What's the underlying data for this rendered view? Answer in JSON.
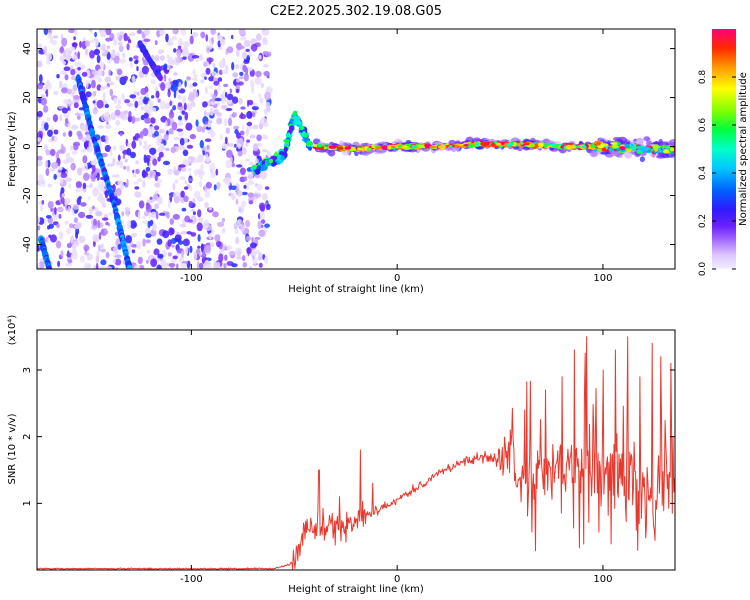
{
  "title": "C2E2.2025.302.19.08.G05",
  "chart_data": [
    {
      "type": "heatmap",
      "xlabel": "Height of straight line (km)",
      "ylabel": "Frequency (Hz)",
      "xlim": [
        -175,
        135
      ],
      "ylim": [
        -50,
        48
      ],
      "xticks": [
        -100,
        0,
        100
      ],
      "yticks": [
        -40,
        -20,
        0,
        20,
        40
      ],
      "colorbar": {
        "label": "Normalized spectral amplitude",
        "range": [
          0,
          1
        ],
        "ticks": [
          0.0,
          0.2,
          0.4,
          0.6,
          0.8
        ]
      },
      "features": [
        {
          "name": "noise_region",
          "x_range": [
            -175,
            -62
          ],
          "y_range": [
            -50,
            48
          ],
          "amplitude": 0.12
        },
        {
          "name": "streak_1",
          "points": [
            [
              -155,
              28
            ],
            [
              -148,
              5
            ],
            [
              -138,
              -22
            ],
            [
              -130,
              -50
            ]
          ],
          "amplitude": 0.3
        },
        {
          "name": "streak_2",
          "points": [
            [
              -125,
              42
            ],
            [
              -115,
              28
            ]
          ],
          "amplitude": 0.22
        },
        {
          "name": "streak_3",
          "points": [
            [
              -173,
              -38
            ],
            [
              -169,
              -50
            ]
          ],
          "amplitude": 0.3
        },
        {
          "name": "transition",
          "points": [
            [
              -70,
              -10
            ],
            [
              -62,
              -6
            ],
            [
              -55,
              -4
            ],
            [
              -50,
              13
            ],
            [
              -46,
              6
            ],
            [
              -42,
              0
            ]
          ],
          "amplitude": 0.45
        },
        {
          "name": "carrier_line",
          "points": [
            [
              -40,
              0
            ],
            [
              -20,
              -1
            ],
            [
              0,
              0
            ],
            [
              20,
              0
            ],
            [
              40,
              1
            ],
            [
              60,
              1
            ],
            [
              80,
              0
            ],
            [
              100,
              0
            ],
            [
              120,
              -1
            ],
            [
              135,
              -1
            ]
          ],
          "amplitude": 0.95
        }
      ]
    },
    {
      "type": "line",
      "xlabel": "Height of straight line (km)",
      "ylabel": "SNR (10 * v/v)",
      "scale_label": "(x10⁴)",
      "xlim": [
        -175,
        135
      ],
      "ylim": [
        0,
        3.6
      ],
      "xticks": [
        -100,
        0,
        100
      ],
      "yticks": [
        1,
        2,
        3
      ],
      "series": [
        {
          "name": "SNR",
          "color": "#e8392e",
          "profile": [
            [
              -175,
              0.02
            ],
            [
              -60,
              0.02
            ],
            [
              -50,
              0.1
            ],
            [
              -45,
              0.6
            ],
            [
              -40,
              0.7
            ],
            [
              -35,
              0.6
            ],
            [
              -30,
              0.65
            ],
            [
              -25,
              0.6
            ],
            [
              -20,
              0.8
            ],
            [
              -10,
              0.9
            ],
            [
              0,
              1.05
            ],
            [
              10,
              1.25
            ],
            [
              20,
              1.45
            ],
            [
              30,
              1.6
            ],
            [
              40,
              1.68
            ],
            [
              50,
              1.7
            ],
            [
              55,
              1.65
            ],
            [
              60,
              1.45
            ],
            [
              70,
              1.5
            ],
            [
              80,
              1.55
            ],
            [
              90,
              1.5
            ],
            [
              100,
              1.45
            ],
            [
              110,
              1.4
            ],
            [
              120,
              1.35
            ],
            [
              135,
              1.3
            ]
          ],
          "spikes": [
            [
              -38,
              1.5
            ],
            [
              -28,
              1.1
            ],
            [
              -18,
              1.8
            ],
            [
              -12,
              1.3
            ],
            [
              55,
              2.1
            ],
            [
              62,
              2.4
            ],
            [
              72,
              2.7
            ],
            [
              80,
              2.9
            ],
            [
              86,
              3.3
            ],
            [
              92,
              3.5
            ],
            [
              100,
              3.0
            ],
            [
              106,
              3.3
            ],
            [
              112,
              3.5
            ],
            [
              118,
              2.9
            ],
            [
              124,
              3.4
            ],
            [
              128,
              3.2
            ],
            [
              133,
              3.1
            ]
          ]
        }
      ]
    }
  ]
}
